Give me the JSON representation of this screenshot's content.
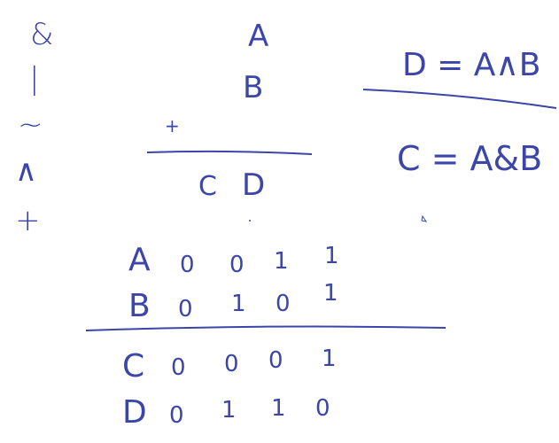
{
  "colors": {
    "ink": "#3c46a8",
    "background": "#ffffff"
  },
  "operator_symbols": [
    "&",
    "|",
    "~",
    "∧",
    "+"
  ],
  "column_addition": {
    "top": "A",
    "second": "B",
    "plus": "+",
    "result_left": "C",
    "result_right": "D"
  },
  "equations": [
    "D = A∧B",
    "C = A&B"
  ],
  "truth_table": {
    "rows": [
      {
        "label": "A",
        "values": [
          "0",
          "0",
          "1",
          "1"
        ]
      },
      {
        "label": "B",
        "values": [
          "0",
          "1",
          "0",
          "1"
        ]
      }
    ],
    "results": [
      {
        "label": "C",
        "values": [
          "0",
          "0",
          "0",
          "1"
        ]
      },
      {
        "label": "D",
        "values": [
          "0",
          "1",
          "1",
          "0"
        ]
      }
    ]
  }
}
